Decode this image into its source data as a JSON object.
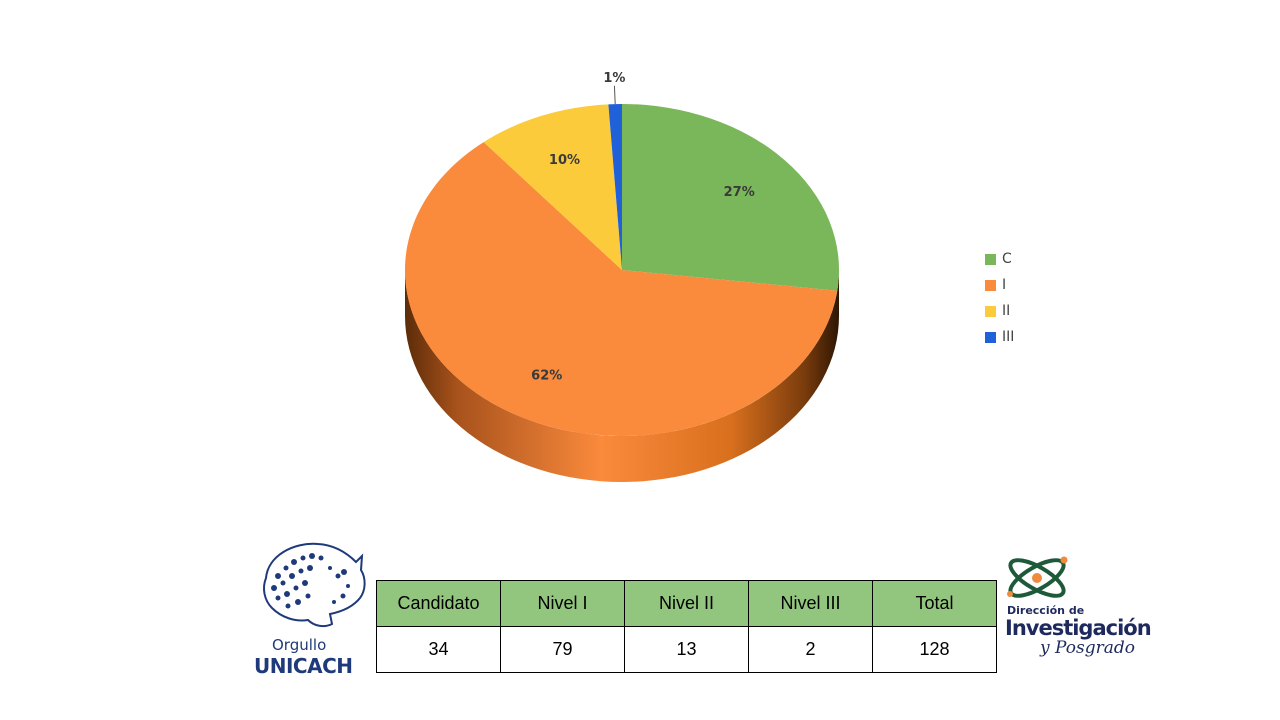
{
  "chart_data": {
    "type": "pie",
    "title": "",
    "slices": [
      {
        "label": "C",
        "value": 27,
        "display": "27%",
        "color": "#7ab65a"
      },
      {
        "label": "I",
        "value": 62,
        "display": "62%",
        "color": "#fa8a3c"
      },
      {
        "label": "II",
        "value": 10,
        "display": "10%",
        "color": "#fccb3b"
      },
      {
        "label": "III",
        "value": 1,
        "display": "1%",
        "color": "#2060d8"
      }
    ],
    "legend_position": "right",
    "style": "3d"
  },
  "table": {
    "headers": [
      "Candidato",
      "Nivel I",
      "Nivel II",
      "Nivel III",
      "Total"
    ],
    "row": [
      "34",
      "79",
      "13",
      "2",
      "128"
    ]
  },
  "logos": {
    "left": {
      "line1": "Orgullo",
      "line2": "UNICACH"
    },
    "right": {
      "line1": "Dirección de",
      "line2": "Investigación",
      "line3": "y Posgrado"
    }
  }
}
